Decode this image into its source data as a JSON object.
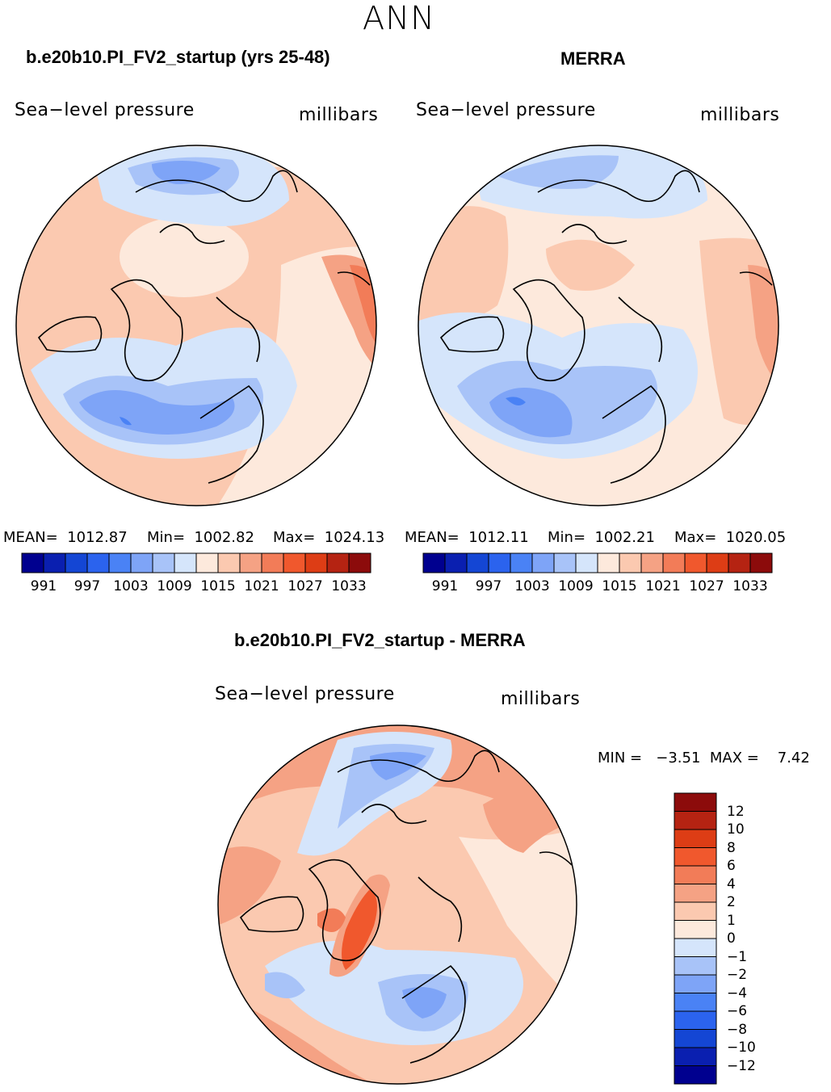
{
  "season": "ANN",
  "variable": "Sea−level pressure",
  "units": "millibars",
  "panels": {
    "left": {
      "title": "b.e20b10.PI_FV2_startup (yrs 25-48)",
      "variable": "Sea−level pressure",
      "units": "millibars",
      "stats": {
        "mean": "MEAN=  1012.87",
        "min": "Min=  1002.82",
        "max": "Max=  1024.13"
      }
    },
    "right": {
      "title": "MERRA",
      "variable": "Sea−level pressure",
      "units": "millibars",
      "stats": {
        "mean": "MEAN=  1012.11",
        "min": "Min=  1002.21",
        "max": "Max=  1020.05"
      }
    },
    "diff": {
      "title": "b.e20b10.PI_FV2_startup - MERRA",
      "variable": "Sea−level pressure",
      "units": "millibars",
      "stats": {
        "min_max": "MIN =   −3.51  MAX =    7.42"
      }
    }
  },
  "colorbar_main": {
    "colors": [
      "#00008f",
      "#0a1fb0",
      "#1446d4",
      "#2b63ee",
      "#4a82f5",
      "#7ea4f7",
      "#a8c3f8",
      "#d5e5fb",
      "#fde9dc",
      "#fbc9b0",
      "#f5a284",
      "#f27c58",
      "#f0582d",
      "#dd3d15",
      "#b52312",
      "#8c0b0b"
    ],
    "ticks": [
      "991",
      "997",
      "1003",
      "1009",
      "1015",
      "1021",
      "1027",
      "1033"
    ]
  },
  "colorbar_diff": {
    "colors": [
      "#8c0b0b",
      "#b52312",
      "#dd3d15",
      "#f0582d",
      "#f27c58",
      "#f5a284",
      "#fbc9b0",
      "#fde9dc",
      "#d5e5fb",
      "#a8c3f8",
      "#7ea4f7",
      "#4a82f5",
      "#2b63ee",
      "#1446d4",
      "#0a1fb0",
      "#00008f"
    ],
    "ticks": [
      "12",
      "10",
      "8",
      "6",
      "4",
      "2",
      "1",
      "0",
      "−1",
      "−2",
      "−4",
      "−6",
      "−8",
      "−10",
      "−12"
    ]
  }
}
